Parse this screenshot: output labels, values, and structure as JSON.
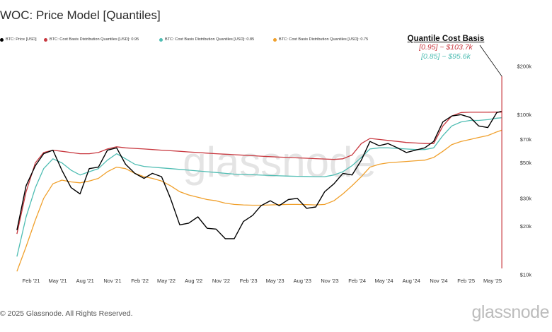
{
  "header": {
    "title": "WOC: Price Model [Quantiles]"
  },
  "legend": [
    {
      "label": "BTC: Price [USD]",
      "color": "#000000"
    },
    {
      "label": "BTC: Cost Basis Distribution Quantiles [USD]: 0.95",
      "color": "#c8383f"
    },
    {
      "label": "BTC: Cost Basis Distribution Quantiles [USD]: 0.85",
      "color": "#4fbdb3"
    },
    {
      "label": "BTC: Cost Basis Distribution Quantiles [USD]: 0.75",
      "color": "#f0a02c"
    }
  ],
  "annotation": {
    "title": "Quantile Cost Basis",
    "line1": "[0.95] ~ $103.7k",
    "line2": "[0.85] ~ $95.6k",
    "line1_color": "#c8383f",
    "line2_color": "#4fbdb3"
  },
  "footer": {
    "copyright": "© 2025 Glassnode. All Rights Reserved.",
    "brand": "glassnode"
  },
  "watermark": "glassnode",
  "chart_data": {
    "type": "line",
    "title": "WOC: Price Model [Quantiles]",
    "x_tick_labels": [
      "Feb '21",
      "May '21",
      "Aug '21",
      "Nov '21",
      "Feb '22",
      "May '22",
      "Aug '22",
      "Nov '22",
      "Feb '23",
      "May '23",
      "Aug '23",
      "Nov '23",
      "Feb '24",
      "May '24",
      "Aug '24",
      "Nov '24",
      "Feb '25",
      "May '25"
    ],
    "y_tick_labels": [
      "$200k",
      "$100k",
      "$70k",
      "$50k",
      "$30k",
      "$20k",
      "$10k"
    ],
    "y_ticks": [
      200000,
      100000,
      70000,
      50000,
      30000,
      20000,
      10000
    ],
    "y_scale": "log",
    "ylim": [
      10000,
      200000
    ],
    "xlim": [
      "2020-12-01",
      "2025-06-15"
    ],
    "x_ticks": [
      "2021-02-01",
      "2021-05-01",
      "2021-08-01",
      "2021-11-01",
      "2022-02-01",
      "2022-05-01",
      "2022-08-01",
      "2022-11-01",
      "2023-02-01",
      "2023-05-01",
      "2023-08-01",
      "2023-11-01",
      "2024-02-01",
      "2024-05-01",
      "2024-08-01",
      "2024-11-01",
      "2025-02-01",
      "2025-05-01"
    ],
    "grid": false,
    "x": [
      "2020-12-15",
      "2021-01-15",
      "2021-02-15",
      "2021-03-15",
      "2021-04-15",
      "2021-05-15",
      "2021-06-15",
      "2021-07-15",
      "2021-08-15",
      "2021-09-15",
      "2021-10-15",
      "2021-11-15",
      "2021-12-15",
      "2022-01-15",
      "2022-02-15",
      "2022-03-15",
      "2022-04-15",
      "2022-05-15",
      "2022-06-15",
      "2022-07-15",
      "2022-08-15",
      "2022-09-15",
      "2022-10-15",
      "2022-11-15",
      "2022-12-15",
      "2023-01-15",
      "2023-02-15",
      "2023-03-15",
      "2023-04-15",
      "2023-05-15",
      "2023-06-15",
      "2023-07-15",
      "2023-08-15",
      "2023-09-15",
      "2023-10-15",
      "2023-11-15",
      "2023-12-15",
      "2024-01-15",
      "2024-02-15",
      "2024-03-15",
      "2024-04-15",
      "2024-05-15",
      "2024-06-15",
      "2024-07-15",
      "2024-08-15",
      "2024-09-15",
      "2024-10-15",
      "2024-11-15",
      "2024-12-15",
      "2025-01-15",
      "2025-02-15",
      "2025-03-15",
      "2025-04-15",
      "2025-05-15",
      "2025-06-01"
    ],
    "series": [
      {
        "name": "BTC: Price [USD]",
        "color": "#000000",
        "values": [
          19000,
          36000,
          48000,
          57000,
          60000,
          45000,
          35000,
          32000,
          46000,
          47000,
          60000,
          62000,
          49000,
          43000,
          40000,
          43000,
          41000,
          30000,
          20500,
          21000,
          23000,
          19500,
          19300,
          16800,
          16800,
          21500,
          23500,
          27000,
          29000,
          27000,
          29500,
          30000,
          26000,
          26500,
          33000,
          37000,
          43000,
          42000,
          52000,
          68000,
          64000,
          66000,
          62000,
          58000,
          60000,
          62000,
          68000,
          90000,
          98000,
          100000,
          96000,
          85000,
          83000,
          103000,
          105000
        ]
      },
      {
        "name": "BTC: Cost Basis Distribution Quantiles [USD]: 0.95",
        "color": "#c8383f",
        "values": [
          18000,
          33000,
          50000,
          58000,
          60000,
          59000,
          58000,
          57000,
          57000,
          58000,
          61000,
          63000,
          62000,
          61500,
          61000,
          60500,
          60000,
          59500,
          59000,
          58500,
          58000,
          57500,
          57000,
          56600,
          56200,
          55800,
          55400,
          55000,
          54600,
          54300,
          54000,
          53700,
          53400,
          53100,
          52800,
          52500,
          53000,
          56000,
          66000,
          71000,
          70000,
          69000,
          68000,
          67000,
          66500,
          66000,
          66000,
          85000,
          98000,
          103000,
          103500,
          103500,
          103500,
          103700,
          103700
        ]
      },
      {
        "name": "BTC: Cost Basis Distribution Quantiles [USD]: 0.85",
        "color": "#4fbdb3",
        "values": [
          13000,
          23000,
          35000,
          46000,
          53000,
          50000,
          45000,
          42000,
          44000,
          46000,
          52000,
          57000,
          53000,
          49000,
          47500,
          47000,
          46500,
          46000,
          45500,
          45000,
          44500,
          44000,
          43500,
          43000,
          42500,
          42300,
          42100,
          41900,
          41700,
          41500,
          41300,
          41200,
          41100,
          41000,
          41000,
          42000,
          44000,
          48000,
          54000,
          61000,
          62000,
          62000,
          61500,
          61000,
          60500,
          60500,
          62000,
          74000,
          85000,
          90000,
          92000,
          92000,
          93000,
          95000,
          95600
        ]
      },
      {
        "name": "BTC: Cost Basis Distribution Quantiles [USD]: 0.75",
        "color": "#f0a02c",
        "values": [
          10500,
          15000,
          22000,
          30000,
          37000,
          39000,
          38000,
          37500,
          38500,
          40000,
          44000,
          47000,
          46000,
          43000,
          41000,
          40000,
          38500,
          36000,
          33000,
          31500,
          30500,
          29500,
          29000,
          28000,
          27500,
          27300,
          27200,
          27200,
          27300,
          27400,
          27500,
          27500,
          27400,
          27300,
          27500,
          29000,
          32000,
          36000,
          41000,
          47000,
          49000,
          50000,
          50500,
          51000,
          51500,
          52000,
          54000,
          59000,
          65000,
          68000,
          70000,
          72000,
          74000,
          78000,
          80000
        ]
      }
    ]
  }
}
